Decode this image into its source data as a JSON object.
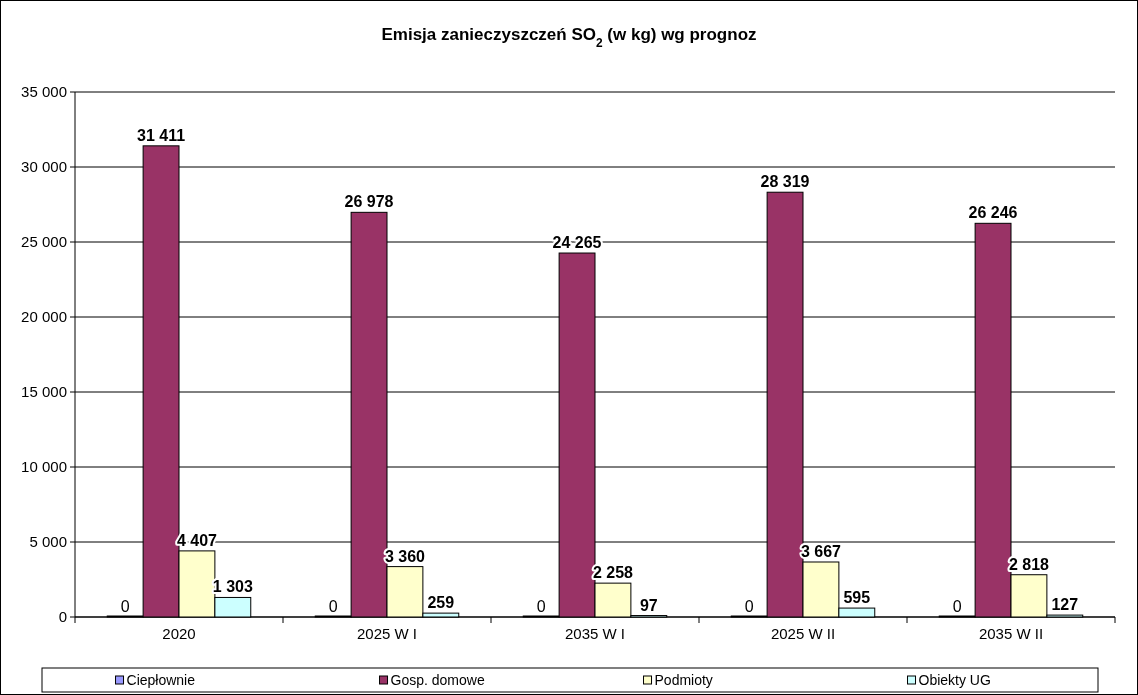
{
  "chart_data": {
    "type": "bar",
    "title": "Emisja zanieczyszczeń SO$_{2}$ (w kg) wg prognoz",
    "categories": [
      "2020",
      "2025 W I",
      "2035 W I",
      "2025 W II",
      "2035 W II"
    ],
    "series": [
      {
        "name": "Ciepłownie",
        "color": "#9999ff",
        "values": [
          0,
          0,
          0,
          0,
          0
        ],
        "value_labels": [
          "0",
          "0",
          "0",
          "0",
          "0"
        ]
      },
      {
        "name": "Gosp. domowe",
        "color": "#993366",
        "values": [
          31411,
          26978,
          24265,
          28319,
          26246
        ],
        "value_labels": [
          "31 411",
          "26 978",
          "24 265",
          "28 319",
          "26 246"
        ]
      },
      {
        "name": "Podmioty",
        "color": "#ffffcc",
        "values": [
          4407,
          3360,
          2258,
          3667,
          2818
        ],
        "value_labels": [
          "4 407",
          "3 360",
          "2 258",
          "3 667",
          "2 818"
        ]
      },
      {
        "name": "Obiekty UG",
        "color": "#ccffff",
        "values": [
          1303,
          259,
          97,
          595,
          127
        ],
        "value_labels": [
          "1 303",
          "259",
          "97",
          "595",
          "127"
        ]
      }
    ],
    "ylim": [
      0,
      35000
    ],
    "yticks": [
      {
        "value": 0,
        "label": "0"
      },
      {
        "value": 5000,
        "label": "5 000"
      },
      {
        "value": 10000,
        "label": "10 000"
      },
      {
        "value": 15000,
        "label": "15 000"
      },
      {
        "value": 20000,
        "label": "20 000"
      },
      {
        "value": 25000,
        "label": "25 000"
      },
      {
        "value": 30000,
        "label": "30 000"
      },
      {
        "value": 35000,
        "label": "35 000"
      }
    ],
    "grid": "y",
    "legend": "bottom"
  }
}
